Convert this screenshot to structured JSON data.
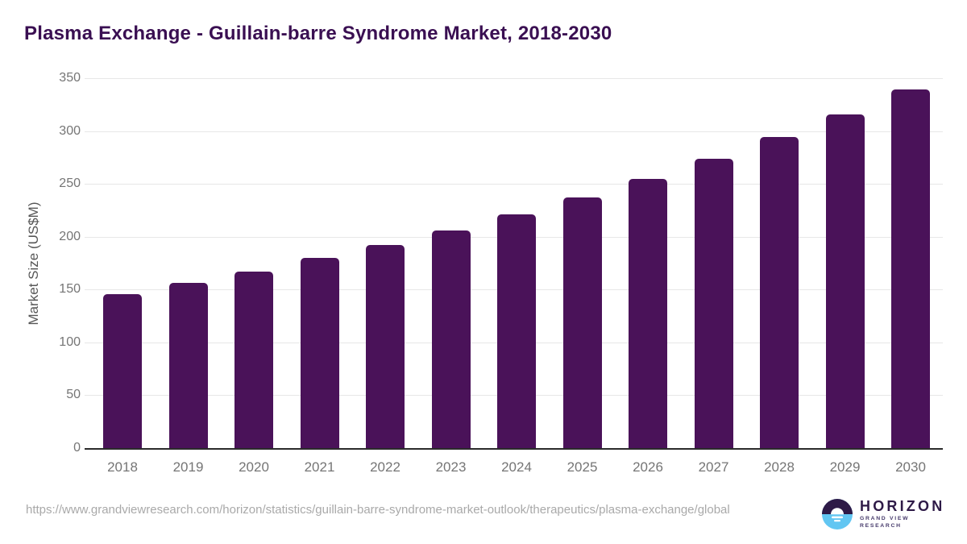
{
  "title": "Plasma Exchange - Guillain-barre Syndrome Market, 2018-2030",
  "chart_data": {
    "type": "bar",
    "categories": [
      "2018",
      "2019",
      "2020",
      "2021",
      "2022",
      "2023",
      "2024",
      "2025",
      "2026",
      "2027",
      "2028",
      "2029",
      "2030"
    ],
    "values": [
      146,
      156,
      167,
      180,
      192,
      206,
      221,
      237,
      255,
      274,
      294,
      316,
      339
    ],
    "title": "Plasma Exchange - Guillain-barre Syndrome Market, 2018-2030",
    "xlabel": "",
    "ylabel": "Market Size (US$M)",
    "ylim": [
      0,
      350
    ],
    "yticks": [
      0,
      50,
      100,
      150,
      200,
      250,
      300,
      350
    ],
    "grid": true,
    "legend": false,
    "bar_color": "#4a1259"
  },
  "colors": {
    "title": "#3a0f52",
    "bar": "#4a1259",
    "gridline": "#e7e7e7",
    "axis_line": "#2b2b2b",
    "tick_label": "#757575",
    "axis_title": "#565656",
    "footer_url": "#a9a9a9",
    "logo_dark": "#2e1a47",
    "logo_blue": "#62c6f2"
  },
  "footer": {
    "source_url": "https://www.grandviewresearch.com/horizon/statistics/guillain-barre-syndrome-market-outlook/therapeutics/plasma-exchange/global",
    "logo_name": "HORIZON",
    "logo_subtitle": "GRAND VIEW RESEARCH"
  }
}
